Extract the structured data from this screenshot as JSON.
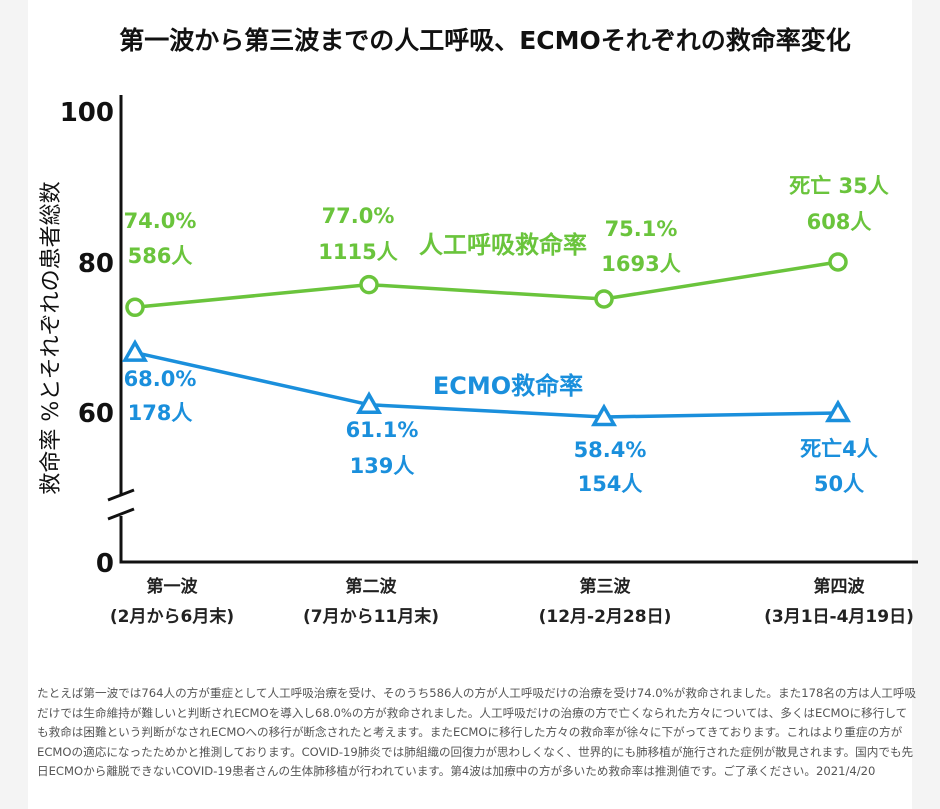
{
  "chart_data": {
    "type": "line",
    "title": "第一波から第三波までの人工呼吸、ECMOそれぞれの救命率変化",
    "ylabel": "救命率 %とそれぞれの患者総数",
    "yticks": [
      "100",
      "80",
      "60",
      "0"
    ],
    "ylim": [
      0,
      100
    ],
    "axis_break": true,
    "categories": [
      "第一波",
      "第二波",
      "第三波",
      "第四波"
    ],
    "category_subtitles": [
      "(2月から6月末)",
      "(7月から11月末)",
      "(12月-2月28日)",
      "(3月1日-4月19日)"
    ],
    "series": [
      {
        "name": "人工呼吸救命率",
        "color": "#6ac43c",
        "marker": "circle",
        "values": [
          74.0,
          77.0,
          75.1,
          80
        ],
        "labels": [
          [
            "74.0%",
            "586人"
          ],
          [
            "77.0%",
            "1115人"
          ],
          [
            "75.1%",
            "1693人"
          ],
          [
            "死亡 35人",
            "608人"
          ]
        ]
      },
      {
        "name": "ECMO救命率",
        "color": "#1a8fdc",
        "marker": "triangle",
        "values": [
          68.0,
          61.1,
          58.4,
          60
        ],
        "labels": [
          [
            "68.0%",
            "178人"
          ],
          [
            "61.1%",
            "139人"
          ],
          [
            "58.4%",
            "154人"
          ],
          [
            "死亡4人",
            "50人"
          ]
        ]
      }
    ],
    "grid": false
  },
  "footnote": "たとえば第一波では764人の方が重症として人工呼吸治療を受け、そのうち586人の方が人工呼吸だけの治療を受け74.0%が救命されました。また178名の方は人工呼吸だけでは生命維持が難しいと判断されECMOを導入し68.0%の方が救命されました。人工呼吸だけの治療の方で亡くなられた方々については、多くはECMOに移行しても救命は困難という判断がなされECMOへの移行が断念されたと考えます。またECMOに移行した方々の救命率が徐々に下がってきております。これはより重症の方がECMOの適応になったためかと推測しております。COVID-19肺炎では肺組織の回復力が思わしくなく、世界的にも肺移植が施行された症例が散見されます。国内でも先日ECMOから離脱できないCOVID-19患者さんの生体肺移植が行われています。第4波は加療中の方が多いため救命率は推測値です。ご了承ください。2021/4/20"
}
